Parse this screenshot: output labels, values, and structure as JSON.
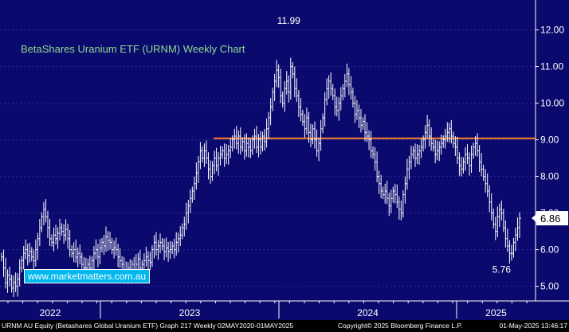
{
  "chart_data": {
    "type": "ohlc-bar",
    "title": "BetaShares Uranium ETF (URNM) Weekly Chart",
    "website": "www.marketmatters.com.au",
    "ylim": [
      4.6,
      12.6
    ],
    "yticks": [
      5.0,
      6.0,
      7.0,
      8.0,
      9.0,
      10.0,
      11.0,
      12.0
    ],
    "ytick_labels": [
      "5.00",
      "6.00",
      "7.00",
      "8.00",
      "9.00",
      "10.00",
      "11.00",
      "12.00"
    ],
    "x_year_labels": [
      "2022",
      "2023",
      "2024",
      "2025"
    ],
    "last_price": "6.86",
    "annotations": [
      {
        "text": "11.99",
        "value": 11.99,
        "bar_index": 143
      },
      {
        "text": "5.76",
        "value": 5.76,
        "bar_index": 249
      }
    ],
    "resistance_level": 9.04,
    "colors": {
      "background": "#0a0a6e",
      "bars": "#ffffff",
      "resistance": "#ff7f27",
      "grid": "#2a2a9a",
      "title": "#8fd88f",
      "website_bg": "#00b8ee"
    },
    "weekly_closes": [
      5.8,
      5.5,
      5.1,
      5.3,
      5.2,
      4.95,
      5.1,
      5.0,
      5.2,
      5.5,
      5.7,
      5.9,
      6.0,
      5.85,
      5.95,
      5.8,
      5.7,
      6.0,
      6.3,
      6.6,
      6.9,
      7.1,
      6.9,
      6.6,
      6.3,
      6.2,
      6.4,
      6.3,
      6.45,
      6.6,
      6.5,
      6.4,
      6.55,
      6.3,
      6.0,
      5.9,
      6.0,
      5.8,
      5.9,
      5.8,
      5.6,
      5.5,
      5.5,
      5.6,
      5.5,
      5.7,
      5.9,
      6.0,
      5.8,
      6.05,
      6.2,
      6.1,
      6.35,
      6.25,
      6.2,
      6.0,
      6.05,
      6.0,
      5.8,
      5.7,
      5.6,
      5.4,
      5.35,
      5.5,
      5.4,
      5.6,
      5.45,
      5.6,
      5.75,
      5.5,
      5.6,
      5.7,
      5.8,
      5.7,
      5.65,
      6.0,
      6.2,
      6.0,
      6.1,
      6.2,
      6.1,
      5.95,
      6.05,
      5.95,
      6.0,
      6.1,
      6.0,
      6.2,
      6.3,
      6.4,
      6.6,
      6.7,
      7.0,
      7.2,
      7.4,
      7.6,
      7.8,
      8.1,
      8.4,
      8.7,
      8.5,
      8.7,
      8.5,
      8.2,
      8.0,
      8.3,
      8.5,
      8.3,
      8.5,
      8.6,
      8.7,
      8.5,
      8.6,
      8.7,
      8.8,
      9.0,
      9.1,
      8.9,
      9.1,
      8.8,
      8.95,
      8.7,
      8.9,
      8.8,
      8.7,
      9.0,
      9.1,
      8.8,
      9.0,
      8.8,
      9.1,
      8.95,
      9.3,
      9.6,
      9.9,
      10.3,
      10.6,
      10.9,
      10.7,
      10.2,
      10.0,
      10.4,
      10.6,
      10.3,
      11.0,
      10.8,
      10.4,
      10.2,
      9.9,
      9.7,
      9.5,
      9.3,
      9.6,
      9.2,
      9.0,
      9.3,
      9.0,
      8.7,
      8.9,
      9.3,
      9.6,
      10.1,
      10.4,
      10.6,
      10.4,
      10.2,
      9.9,
      9.8,
      10.0,
      10.2,
      10.4,
      10.6,
      10.8,
      10.5,
      10.3,
      10.0,
      9.7,
      9.8,
      9.6,
      9.4,
      9.5,
      9.2,
      9.1,
      9.0,
      8.7,
      8.6,
      8.4,
      8.0,
      7.8,
      7.6,
      7.5,
      7.6,
      7.4,
      7.2,
      7.4,
      7.6,
      7.5,
      7.3,
      7.1,
      7.0,
      7.5,
      7.8,
      8.2,
      8.4,
      8.6,
      8.7,
      8.5,
      8.6,
      8.7,
      8.8,
      9.0,
      9.2,
      9.4,
      9.1,
      8.9,
      8.8,
      8.6,
      8.7,
      8.8,
      8.9,
      9.0,
      9.1,
      9.2,
      9.3,
      9.1,
      8.9,
      8.8,
      8.5,
      8.3,
      8.2,
      8.4,
      8.6,
      8.5,
      8.3,
      8.6,
      8.8,
      8.9,
      8.7,
      8.4,
      8.2,
      8.0,
      7.8,
      7.6,
      7.3,
      7.0,
      6.7,
      6.5,
      6.9,
      7.1,
      7.0,
      6.6,
      6.3,
      6.1,
      5.9,
      5.9,
      6.2,
      6.4,
      6.6,
      6.86
    ]
  },
  "footer": {
    "left": "URNM AU Equity (Betashares Global Uranium ETF) Graph 217  Weekly 02MAY2020-01MAY2025",
    "middle": "Copyright© 2025 Bloomberg Finance L.P.",
    "right": "01-May-2025 13:46:17"
  }
}
